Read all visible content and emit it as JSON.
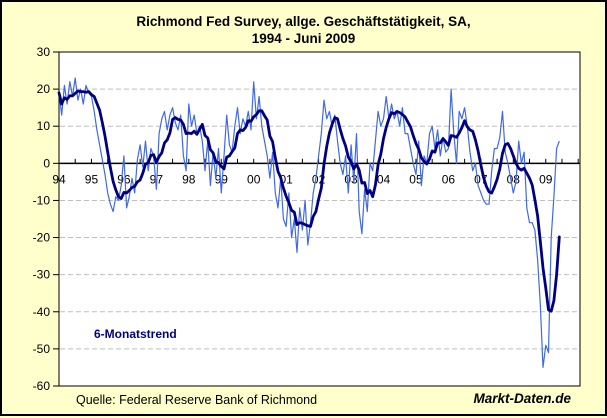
{
  "title": {
    "line1": "Richmond Fed Survey, allge. Geschäftstätigkeit, SA,",
    "line2": "1994 - Juni 2009"
  },
  "trend_label": "6-Monatstrend",
  "source": "Quelle: Federal Reserve Bank of Richmond",
  "brand": "Markt-Daten.de",
  "colors": {
    "page_background": "#FFFFCC",
    "plot_background": "#FFFFFF",
    "grid": "#BFBFBF",
    "axis": "#000000",
    "monthly_line": "#4169E1",
    "trend_line": "#000080"
  },
  "chart_data": {
    "type": "line",
    "title": "Richmond Fed Survey, allge. Geschäftstätigkeit, SA, 1994 - Juni 2009",
    "x_range": {
      "start_year": 1994,
      "start_month": 1,
      "end_year": 2009,
      "end_month": 6
    },
    "ylim": [
      -60,
      30
    ],
    "y_tick_values": [
      30,
      20,
      10,
      0,
      -10,
      -20,
      -30,
      -40,
      -50,
      -60
    ],
    "y_tick_labels": [
      "30",
      "20",
      "10",
      "0",
      "-10",
      "-20",
      "-30",
      "-40",
      "-50",
      "-60"
    ],
    "y_gridline_values": [
      20,
      10,
      -10,
      -20,
      -30,
      -40,
      -50
    ],
    "x_tick_labels": [
      "94",
      "95",
      "96",
      "97",
      "98",
      "99",
      "00",
      "01",
      "02",
      "03",
      "04",
      "05",
      "06",
      "07",
      "08",
      "09"
    ],
    "x_minor_tick_interval_months": 6,
    "grid": "dashed horizontal gridlines, solid zero axis",
    "legend_position": "text label inside lower-left",
    "series": [
      {
        "name": "monthly-index",
        "color": "#4169E1",
        "stroke_width": 1.2,
        "values": [
          19,
          13,
          21,
          16,
          22,
          18,
          23,
          17,
          20,
          16,
          21,
          19,
          18,
          14,
          9,
          5,
          1,
          -3,
          -8,
          -11,
          -13,
          -9,
          -10,
          -6,
          2,
          -12,
          -9,
          -4,
          -8,
          1,
          5,
          -1,
          6,
          -2,
          4,
          2,
          -7,
          8,
          12,
          14,
          9,
          13,
          15,
          11,
          9,
          13,
          2,
          -2,
          16,
          10,
          13,
          8,
          10,
          6,
          -2,
          6,
          -6,
          3,
          -4,
          4,
          -8,
          2,
          13,
          5,
          3,
          10,
          15,
          8,
          12,
          10,
          14,
          9,
          22,
          12,
          18,
          10,
          6,
          2,
          -4,
          3,
          -8,
          -12,
          -4,
          -15,
          -17,
          -8,
          -20,
          -15,
          -24,
          -12,
          -18,
          -10,
          -22,
          -16,
          -8,
          -4,
          2,
          8,
          17,
          12,
          14,
          10,
          13,
          6,
          0,
          -3,
          2,
          -8,
          5,
          -5,
          8,
          -13,
          -19,
          -7,
          -13,
          0,
          -2,
          6,
          14,
          10,
          12,
          18,
          12,
          16,
          12,
          14,
          10,
          15,
          8,
          8,
          4,
          0,
          -3,
          6,
          -6,
          2,
          0,
          8,
          10,
          4,
          9,
          2,
          7,
          3,
          4,
          20,
          8,
          0,
          14,
          12,
          15,
          10,
          3,
          -2,
          0,
          -6,
          -8,
          -10,
          -11,
          -11,
          -2,
          4,
          4,
          7,
          14,
          3,
          0,
          -4,
          -8,
          -5,
          6,
          0,
          3,
          -12,
          -16,
          -16,
          -18,
          -26,
          -38,
          -55,
          -49,
          -51,
          -20,
          -9,
          4,
          6
        ]
      },
      {
        "name": "6-Monatstrend",
        "color": "#000080",
        "stroke_width": 2.8,
        "derived_from": "monthly-index",
        "method": "trailing 6-month moving average (expanding window for first 5 months)"
      }
    ]
  }
}
